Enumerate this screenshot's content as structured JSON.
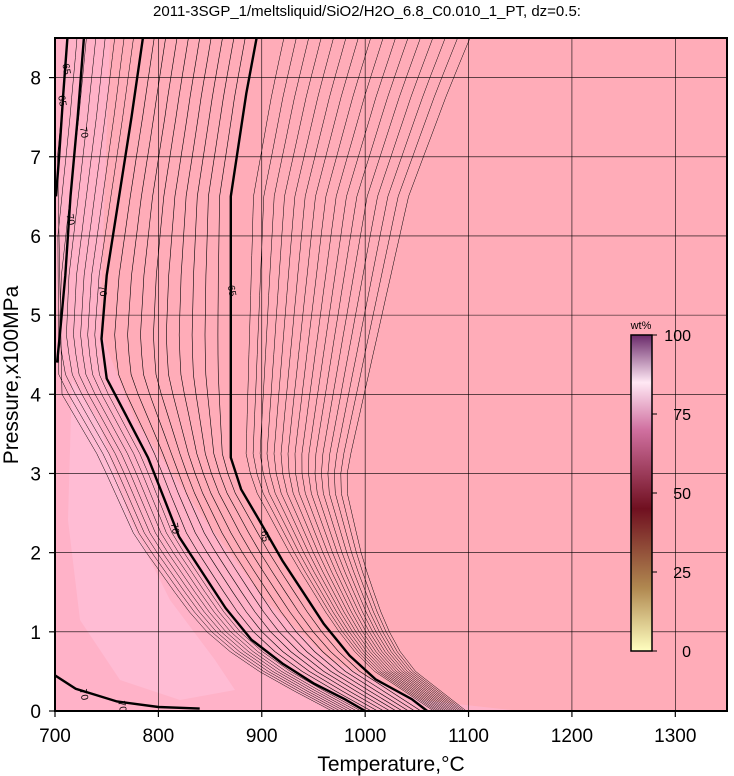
{
  "chart_data": {
    "type": "contour",
    "title": "2011-3SGP_1/meltsliquid/SiO2/H2O_6.8_C0.010_1_PT, dz=0.5:",
    "xlabel": "Temperature,°C",
    "ylabel": "Pressure,x100MPa",
    "xlim": [
      700,
      1350
    ],
    "ylim": [
      0,
      8.5
    ],
    "x_ticks": [
      700,
      800,
      900,
      1000,
      1100,
      1200,
      1300
    ],
    "y_ticks": [
      0,
      1,
      2,
      3,
      4,
      5,
      6,
      7,
      8
    ],
    "grid": true,
    "contour_interval": 0.5,
    "colorbar": {
      "unit": "wt%",
      "range": [
        0,
        100
      ],
      "ticks": [
        0,
        25,
        50,
        75,
        100
      ],
      "colors": [
        "#ffffc0",
        "#b08850",
        "#701020",
        "#d070a0",
        "#ffffff",
        "#6a2a6a"
      ],
      "placement": "right"
    },
    "major_contours": [
      {
        "level": 70,
        "label": "70",
        "points": [
          [
            785,
            8.5
          ],
          [
            774,
            7.5
          ],
          [
            762,
            6.5
          ],
          [
            750,
            5.5
          ],
          [
            745,
            4.7
          ],
          [
            750,
            4.2
          ],
          [
            770,
            3.7
          ],
          [
            790,
            3.2
          ],
          [
            805,
            2.7
          ],
          [
            820,
            2.2
          ],
          [
            845,
            1.7
          ],
          [
            865,
            1.3
          ],
          [
            890,
            0.9
          ],
          [
            920,
            0.6
          ],
          [
            950,
            0.35
          ],
          [
            980,
            0.15
          ],
          [
            1000,
            0.0
          ]
        ],
        "label_at": [
          [
            813,
            2.3
          ],
          [
            743,
            5.3
          ]
        ]
      },
      {
        "level": 65,
        "label": "65",
        "points": [
          [
            895,
            8.5
          ],
          [
            885,
            7.8
          ],
          [
            870,
            6.5
          ],
          [
            870,
            5.0
          ],
          [
            870,
            4.0
          ],
          [
            870,
            3.2
          ],
          [
            880,
            2.8
          ],
          [
            898,
            2.4
          ],
          [
            920,
            1.9
          ],
          [
            940,
            1.5
          ],
          [
            960,
            1.1
          ],
          [
            985,
            0.7
          ],
          [
            1010,
            0.4
          ],
          [
            1045,
            0.15
          ],
          [
            1060,
            0.0
          ]
        ],
        "label_at": [
          [
            868,
            5.3
          ],
          [
            900,
            2.2
          ]
        ]
      },
      {
        "level": 70,
        "label": "70",
        "points": [
          [
            728,
            8.5
          ],
          [
            722,
            7.5
          ],
          [
            715,
            6.5
          ],
          [
            710,
            5.5
          ],
          [
            705,
            4.8
          ],
          [
            702,
            4.4
          ]
        ],
        "label_at": [
          [
            712,
            6.2
          ],
          [
            725,
            7.3
          ]
        ]
      },
      {
        "level": 65,
        "label": "65",
        "points": [
          [
            712,
            8.5
          ],
          [
            708,
            7.8
          ],
          [
            704,
            7.0
          ],
          [
            701,
            6.5
          ]
        ],
        "label_at": [
          [
            708,
            8.1
          ],
          [
            704,
            7.7
          ]
        ]
      },
      {
        "level": 70,
        "label": "70",
        "points": [
          [
            700,
            0.45
          ],
          [
            720,
            0.28
          ],
          [
            760,
            0.12
          ],
          [
            800,
            0.05
          ],
          [
            840,
            0.03
          ]
        ],
        "label_at": [
          [
            725,
            0.2
          ],
          [
            762,
            0.05
          ]
        ]
      }
    ]
  }
}
